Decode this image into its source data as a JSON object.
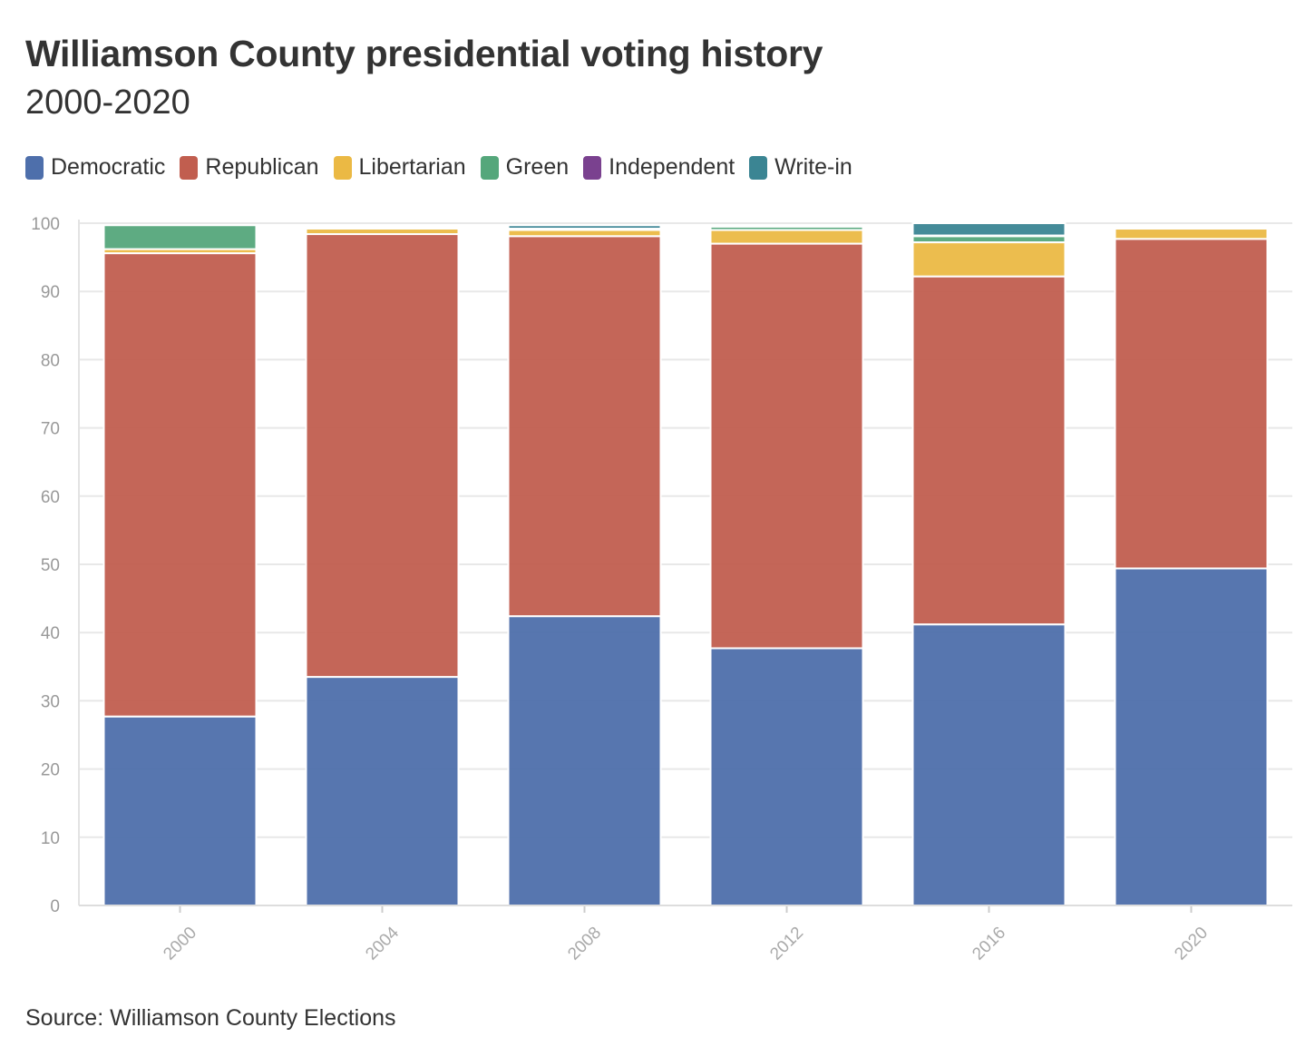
{
  "header": {
    "title": "Williamson County presidential voting history",
    "subtitle": "2000-2020"
  },
  "footer": {
    "source": "Source: Williamson County Elections"
  },
  "colors": {
    "Democratic": "#4e6fab",
    "Republican": "#c15e4f",
    "Libertarian": "#ebb944",
    "Green": "#55a77b",
    "Independent": "#7a418f",
    "Write-in": "#3b8593"
  },
  "chart_data": {
    "type": "bar",
    "stacked": true,
    "title": "Williamson County presidential voting history",
    "subtitle": "2000-2020",
    "categories": [
      "2000",
      "2004",
      "2008",
      "2012",
      "2016",
      "2020"
    ],
    "series": [
      {
        "name": "Democratic",
        "values": [
          27.7,
          33.5,
          42.4,
          37.7,
          41.2,
          49.4
        ]
      },
      {
        "name": "Republican",
        "values": [
          67.9,
          64.9,
          55.7,
          59.3,
          51.0,
          48.3
        ]
      },
      {
        "name": "Libertarian",
        "values": [
          0.6,
          0.8,
          0.9,
          2.0,
          5.0,
          1.5
        ]
      },
      {
        "name": "Green",
        "values": [
          3.5,
          0.0,
          0.2,
          0.5,
          0.9,
          0.2
        ]
      },
      {
        "name": "Independent",
        "values": [
          0.0,
          0.0,
          0.0,
          0.0,
          0.1,
          0.0
        ]
      },
      {
        "name": "Write-in",
        "values": [
          0.0,
          0.0,
          0.5,
          0.1,
          1.8,
          0.0
        ]
      }
    ],
    "y_ticks": [
      0,
      10,
      20,
      30,
      40,
      50,
      60,
      70,
      80,
      90,
      100
    ],
    "ylim": [
      0,
      100
    ],
    "grid": true,
    "legend": "top-left"
  }
}
